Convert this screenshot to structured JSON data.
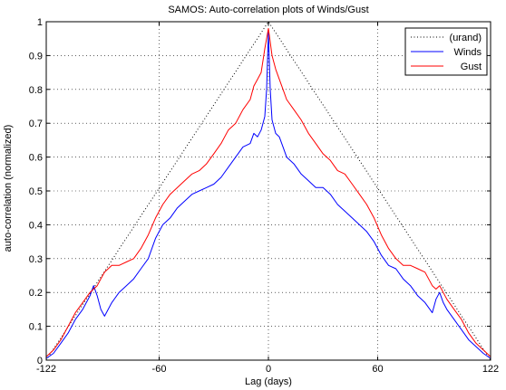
{
  "chart_data": {
    "type": "line",
    "title": "SAMOS: Auto-correlation plots of Winds/Gust",
    "xlabel": "Lag (days)",
    "ylabel": "auto-correlation (normalized)",
    "xlim": [
      -122,
      122
    ],
    "ylim": [
      0,
      1
    ],
    "xticks": [
      -122,
      -60,
      0,
      60,
      122
    ],
    "yticks": [
      0,
      0.1,
      0.2,
      0.3,
      0.4,
      0.5,
      0.6,
      0.7,
      0.8,
      0.9,
      1
    ],
    "xtick_labels": [
      "-122",
      "-60",
      "0",
      "60",
      "122"
    ],
    "ytick_labels": [
      "0",
      "0.1",
      "0.2",
      "0.3",
      "0.4",
      "0.5",
      "0.6",
      "0.7",
      "0.8",
      "0.9",
      "1"
    ],
    "grid": true,
    "legend_position": "top-right",
    "series": [
      {
        "name": "(urand)",
        "color": "#000000",
        "style": "dotted",
        "x": [
          -122,
          0,
          122
        ],
        "y": [
          0,
          1,
          0
        ]
      },
      {
        "name": "Winds",
        "color": "#0000ff",
        "style": "solid",
        "x": [
          -122,
          -118,
          -114,
          -110,
          -106,
          -102,
          -98,
          -96,
          -94,
          -92,
          -90,
          -86,
          -82,
          -78,
          -74,
          -70,
          -66,
          -62,
          -58,
          -54,
          -50,
          -46,
          -42,
          -38,
          -34,
          -30,
          -26,
          -22,
          -18,
          -14,
          -10,
          -8,
          -6,
          -4,
          -2,
          -1,
          0,
          1,
          2,
          4,
          6,
          8,
          10,
          14,
          18,
          22,
          26,
          30,
          34,
          38,
          42,
          46,
          50,
          54,
          58,
          62,
          66,
          70,
          74,
          78,
          82,
          86,
          90,
          92,
          94,
          96,
          98,
          102,
          106,
          110,
          114,
          118,
          122
        ],
        "y": [
          0.005,
          0.02,
          0.05,
          0.08,
          0.12,
          0.15,
          0.19,
          0.22,
          0.19,
          0.15,
          0.13,
          0.17,
          0.2,
          0.22,
          0.24,
          0.27,
          0.3,
          0.36,
          0.4,
          0.42,
          0.45,
          0.47,
          0.49,
          0.5,
          0.51,
          0.52,
          0.54,
          0.57,
          0.6,
          0.63,
          0.64,
          0.67,
          0.66,
          0.68,
          0.72,
          0.8,
          0.97,
          0.8,
          0.71,
          0.67,
          0.66,
          0.63,
          0.6,
          0.58,
          0.55,
          0.53,
          0.51,
          0.51,
          0.49,
          0.46,
          0.44,
          0.42,
          0.4,
          0.38,
          0.35,
          0.31,
          0.28,
          0.27,
          0.24,
          0.22,
          0.19,
          0.17,
          0.14,
          0.18,
          0.2,
          0.17,
          0.15,
          0.12,
          0.09,
          0.06,
          0.04,
          0.02,
          0.005
        ]
      },
      {
        "name": "Gust",
        "color": "#ff0000",
        "style": "solid",
        "x": [
          -122,
          -118,
          -114,
          -110,
          -106,
          -102,
          -98,
          -96,
          -94,
          -92,
          -90,
          -86,
          -82,
          -78,
          -74,
          -70,
          -66,
          -62,
          -58,
          -54,
          -50,
          -46,
          -42,
          -38,
          -34,
          -30,
          -26,
          -22,
          -18,
          -14,
          -10,
          -8,
          -6,
          -4,
          -2,
          -1,
          0,
          1,
          2,
          4,
          6,
          8,
          10,
          14,
          18,
          22,
          26,
          30,
          34,
          38,
          42,
          46,
          50,
          54,
          58,
          62,
          66,
          70,
          74,
          78,
          82,
          86,
          90,
          92,
          94,
          96,
          98,
          102,
          106,
          110,
          114,
          118,
          122
        ],
        "y": [
          0.01,
          0.03,
          0.06,
          0.1,
          0.14,
          0.17,
          0.2,
          0.21,
          0.22,
          0.24,
          0.26,
          0.28,
          0.28,
          0.29,
          0.3,
          0.33,
          0.37,
          0.42,
          0.46,
          0.49,
          0.51,
          0.53,
          0.55,
          0.56,
          0.58,
          0.61,
          0.64,
          0.68,
          0.7,
          0.74,
          0.77,
          0.81,
          0.83,
          0.85,
          0.92,
          0.95,
          0.98,
          0.94,
          0.9,
          0.86,
          0.83,
          0.8,
          0.77,
          0.74,
          0.71,
          0.67,
          0.64,
          0.61,
          0.59,
          0.56,
          0.55,
          0.52,
          0.49,
          0.46,
          0.42,
          0.37,
          0.33,
          0.3,
          0.28,
          0.28,
          0.27,
          0.26,
          0.22,
          0.21,
          0.22,
          0.2,
          0.18,
          0.15,
          0.12,
          0.08,
          0.05,
          0.03,
          0.01
        ]
      }
    ]
  }
}
